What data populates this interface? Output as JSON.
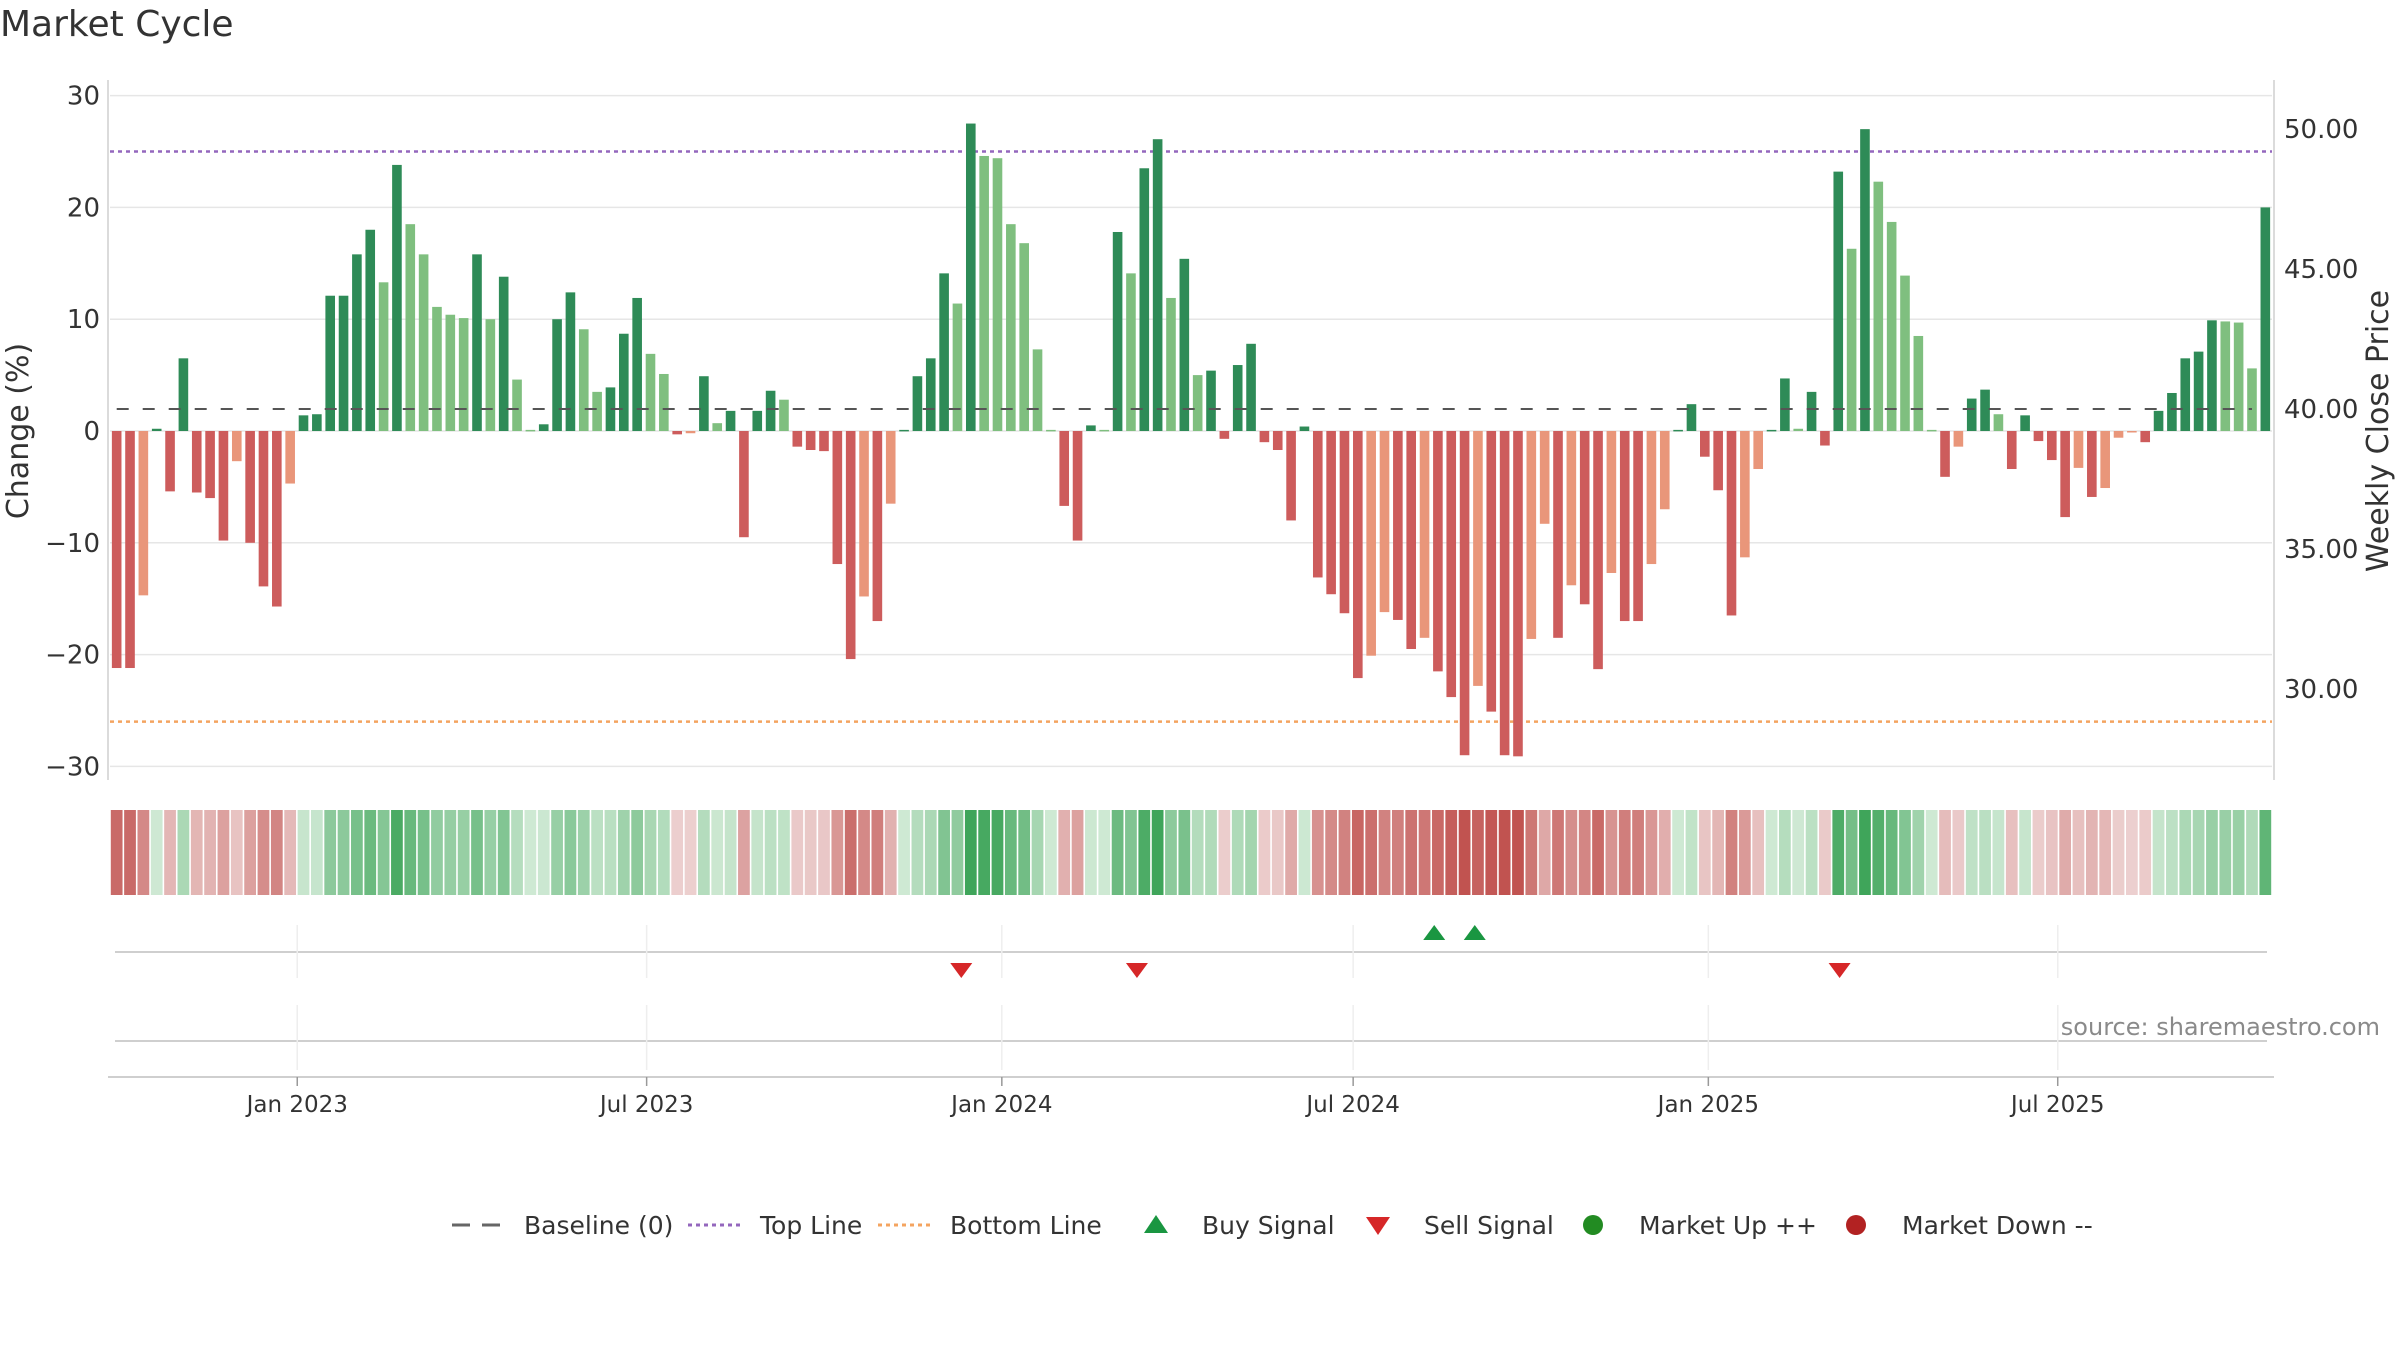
{
  "title": "Market Cycle",
  "source": "source: sharemaestro.com",
  "colors": {
    "strong_up": "#2e8b57",
    "light_up": "#7fbf7f",
    "strong_down": "#cd5c5c",
    "light_down": "#e9967a",
    "top_line": "#9467bd",
    "bottom_line": "#f4a460",
    "buy": "#1a9641",
    "sell": "#d62728",
    "market_up": "#228b22",
    "market_down": "#b22222"
  },
  "chart_data": {
    "type": "bar",
    "title": "Market Cycle",
    "ylabel": "Change (%)",
    "y2label": "Weekly Close Price",
    "ylim": [
      -31.5,
      31.5
    ],
    "y2lim": [
      27.9,
      51.8
    ],
    "yticks": [
      30,
      20,
      10,
      0,
      -10,
      -20,
      -30
    ],
    "y2ticks": [
      "50.00",
      "45.00",
      "40.00",
      "35.00",
      "30.00"
    ],
    "y2tick_values": [
      50,
      45,
      40,
      35,
      30
    ],
    "top_line": 25,
    "bottom_line": -26,
    "start_date": "2022-09-26",
    "end_date": "2025-10-20",
    "xticks": [
      "Jan 2023",
      "Jul 2023",
      "Jan 2024",
      "Jul 2024",
      "Jan 2025",
      "Jul 2025"
    ],
    "xtick_dates": [
      "2023-01-01",
      "2023-07-01",
      "2024-01-01",
      "2024-07-01",
      "2025-01-01",
      "2025-07-01"
    ],
    "values": [
      -21.2,
      -21.2,
      -14.7,
      0.2,
      -5.4,
      6.5,
      -5.5,
      -6,
      -9.8,
      -2.7,
      -10,
      -13.9,
      -15.7,
      -4.7,
      1.4,
      1.5,
      12.1,
      12.1,
      15.8,
      18,
      13.3,
      23.8,
      18.5,
      15.8,
      11.1,
      10.4,
      10.1,
      15.8,
      10,
      13.8,
      4.6,
      0.1,
      0.6,
      10,
      12.4,
      9.1,
      3.5,
      3.9,
      8.7,
      11.9,
      6.9,
      5.1,
      -0.3,
      -0.2,
      4.9,
      0.7,
      1.8,
      -9.5,
      1.8,
      3.6,
      2.8,
      -1.4,
      -1.7,
      -1.8,
      -11.9,
      -20.4,
      -14.8,
      -17,
      -6.5,
      0.1,
      4.9,
      6.5,
      14.1,
      11.4,
      27.5,
      24.6,
      24.4,
      18.5,
      16.8,
      7.3,
      0.1,
      -6.7,
      -9.8,
      0.5,
      0.1,
      17.8,
      14.1,
      23.5,
      26.1,
      11.9,
      15.4,
      5,
      5.4,
      -0.7,
      5.9,
      7.8,
      -1,
      -1.7,
      -8,
      0.4,
      -13.1,
      -14.6,
      -16.3,
      -22.1,
      -20.1,
      -16.2,
      -16.9,
      -19.5,
      -18.5,
      -21.5,
      -23.8,
      -29,
      -22.8,
      -25.1,
      -29,
      -29.1,
      -18.6,
      -8.3,
      -18.5,
      -13.8,
      -15.5,
      -21.3,
      -12.7,
      -17,
      -17,
      -11.9,
      -7,
      0.1,
      2.4,
      -2.3,
      -5.3,
      -16.5,
      -11.3,
      -3.4,
      0.1,
      4.7,
      0.2,
      3.5,
      -1.3,
      23.2,
      16.3,
      27,
      22.3,
      18.7,
      13.9,
      8.5,
      0.1,
      -4.1,
      -1.4,
      2.9,
      3.7,
      1.5,
      -3.4,
      1.4,
      -0.9,
      -2.6,
      -7.7,
      -3.3,
      -5.9,
      -5.1,
      -0.6,
      -0.1,
      -1,
      1.8,
      3.4,
      6.5,
      7.1,
      9.9,
      9.8,
      9.7,
      5.6,
      20
    ],
    "price_weekly_close": [
      40,
      40,
      40,
      40,
      40,
      40,
      40,
      40,
      40,
      40,
      40,
      40,
      40,
      40,
      40,
      40,
      40,
      40,
      40,
      40,
      40,
      40,
      40,
      40,
      40,
      40,
      40,
      40,
      40,
      40,
      40,
      40,
      40,
      40,
      40,
      40,
      40,
      40,
      40,
      40,
      40,
      40,
      40,
      40,
      40,
      40,
      40,
      40,
      40,
      40,
      40,
      40,
      40,
      40,
      40,
      40,
      40,
      40,
      40,
      40,
      40,
      40,
      40,
      40,
      40,
      40,
      40,
      40,
      40,
      40,
      40,
      40,
      40,
      40,
      40,
      40,
      40,
      40,
      40,
      40,
      40,
      40,
      40,
      40,
      40,
      40,
      40,
      40,
      40,
      40,
      40,
      40,
      40,
      40,
      40,
      40,
      40,
      40,
      40,
      40,
      40,
      40,
      40,
      40,
      40,
      40,
      40,
      40,
      40,
      40,
      40,
      40,
      40,
      40,
      40,
      40,
      40,
      40,
      40,
      40,
      40,
      40,
      40,
      40,
      40,
      40,
      40,
      40,
      40,
      40,
      40,
      40,
      40,
      40,
      40,
      40,
      40,
      40,
      40,
      40,
      40,
      40,
      40,
      40,
      40,
      40,
      40,
      40,
      40,
      40,
      40,
      40,
      40,
      40,
      40,
      40,
      40,
      40,
      40,
      40,
      40
    ],
    "buy_signals": [
      "2024-08-12",
      "2024-09-02"
    ],
    "sell_signals": [
      "2023-12-11",
      "2024-03-11",
      "2025-03-10"
    ],
    "legend": [
      {
        "label": "Baseline (0)",
        "symbol": "dash"
      },
      {
        "label": "Top Line",
        "symbol": "dot-purple"
      },
      {
        "label": "Bottom Line",
        "symbol": "dot-orange"
      },
      {
        "label": "Buy Signal",
        "symbol": "triangle-up"
      },
      {
        "label": "Sell Signal",
        "symbol": "triangle-down"
      },
      {
        "label": "Market Up ++",
        "symbol": "circle-green"
      },
      {
        "label": "Market Down --",
        "symbol": "circle-red"
      }
    ],
    "legend_position": "bottom-center",
    "grid": true
  }
}
